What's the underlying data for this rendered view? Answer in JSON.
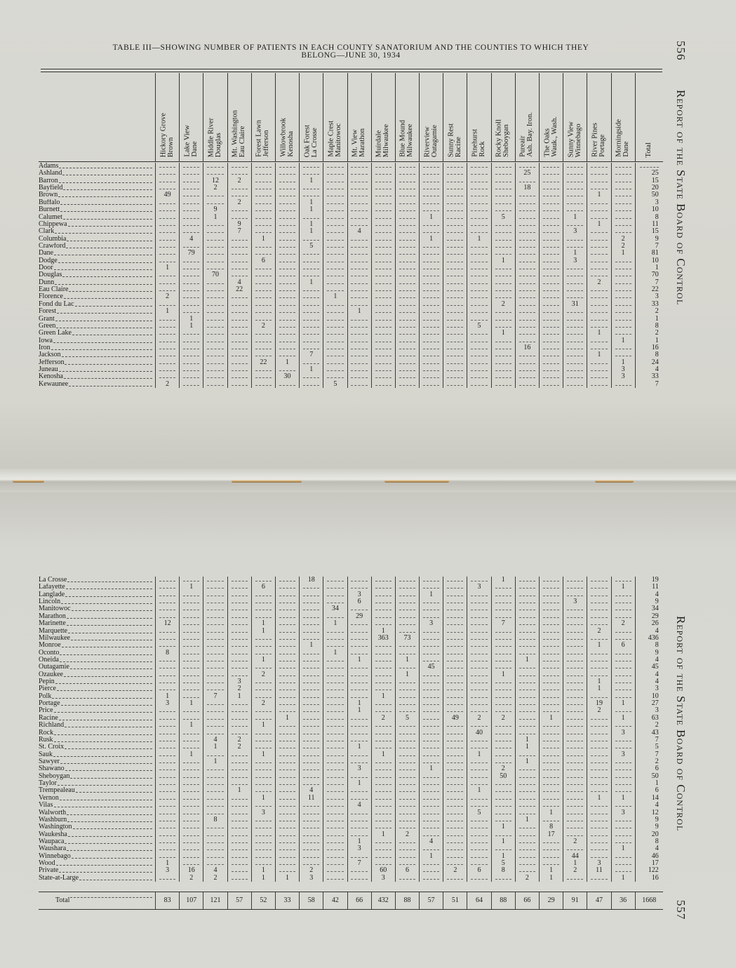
{
  "page_numbers": {
    "left": "556",
    "right": "557"
  },
  "running_head": "Report of the State Board of Control",
  "title": {
    "line1": "TABLE III—SHOWING NUMBER OF PATIENTS IN EACH COUNTY SANATORIUM AND THE COUNTIES TO WHICH THEY",
    "line2": "BELONG—JUNE 30, 1934"
  },
  "columns": [
    {
      "key": "hickory_grove",
      "name": "Hickory Grove",
      "county": "Brown"
    },
    {
      "key": "lake_view",
      "name": "Lake View",
      "county": "Dane"
    },
    {
      "key": "middle_river",
      "name": "Middle River",
      "county": "Douglas"
    },
    {
      "key": "mt_washington",
      "name": "Mt. Washington",
      "county": "Eau Claire"
    },
    {
      "key": "forest_lawn",
      "name": "Forest Lawn",
      "county": "Jefferson"
    },
    {
      "key": "willowbrook",
      "name": "Willowbrook",
      "county": "Kenosha"
    },
    {
      "key": "oak_forest",
      "name": "Oak Forest",
      "county": "La Crosse"
    },
    {
      "key": "maple_crest",
      "name": "Maple Crest",
      "county": "Manitowoc"
    },
    {
      "key": "mt_view",
      "name": "Mt. View",
      "county": "Marathon"
    },
    {
      "key": "muirdale",
      "name": "Muirdale",
      "county": "Milwaukee"
    },
    {
      "key": "blue_mound",
      "name": "Blue Mound",
      "county": "Milwaukee"
    },
    {
      "key": "riverview",
      "name": "Riverview",
      "county": "Outagamie"
    },
    {
      "key": "sunny_rest",
      "name": "Sunny Rest",
      "county": "Racine"
    },
    {
      "key": "pinehurst",
      "name": "Pinehurst",
      "county": "Rock"
    },
    {
      "key": "rocky_knoll",
      "name": "Rocky Knoll",
      "county": "Sheboygan"
    },
    {
      "key": "pureair",
      "name": "Pureair",
      "county": "Ash. Bay. Iron."
    },
    {
      "key": "the_oaks",
      "name": "The Oaks",
      "county": "Wauk., Wash."
    },
    {
      "key": "sunny_view",
      "name": "Sunny View",
      "county": "Winnebago"
    },
    {
      "key": "river_pines",
      "name": "River Pines",
      "county": "Portage"
    },
    {
      "key": "morningside",
      "name": "Morningside",
      "county": "Dane"
    }
  ],
  "total_header": "Total",
  "top_rows": [
    {
      "county": "Adams",
      "cells": {},
      "total": ""
    },
    {
      "county": "Ashland",
      "cells": {
        "pureair": "25"
      },
      "total": "25"
    },
    {
      "county": "Barron",
      "cells": {
        "middle_river": "12",
        "mt_washington": "2",
        "oak_forest": "1"
      },
      "total": "15"
    },
    {
      "county": "Bayfield",
      "cells": {
        "middle_river": "2",
        "pureair": "18"
      },
      "total": "20"
    },
    {
      "county": "Brown",
      "cells": {
        "hickory_grove": "49",
        "river_pines": "1"
      },
      "total": "50"
    },
    {
      "county": "Buffalo",
      "cells": {
        "mt_washington": "2",
        "oak_forest": "1"
      },
      "total": "3"
    },
    {
      "county": "Burnett",
      "cells": {
        "middle_river": "9",
        "oak_forest": "1"
      },
      "total": "10"
    },
    {
      "county": "Calumet",
      "cells": {
        "middle_river": "1",
        "riverview": "1",
        "rocky_knoll": "5",
        "sunny_view": "1"
      },
      "total": "8"
    },
    {
      "county": "Chippewa",
      "cells": {
        "mt_washington": "9",
        "oak_forest": "1",
        "river_pines": "1"
      },
      "total": "11"
    },
    {
      "county": "Clark",
      "cells": {
        "mt_washington": "7",
        "oak_forest": "1",
        "mt_view": "4",
        "sunny_view": "3"
      },
      "total": "15"
    },
    {
      "county": "Columbia",
      "cells": {
        "lake_view": "4",
        "forest_lawn": "1",
        "riverview": "1",
        "pinehurst": "1",
        "morningside": "2"
      },
      "total": "9"
    },
    {
      "county": "Crawford",
      "cells": {
        "oak_forest": "5",
        "morningside": "2"
      },
      "total": "7"
    },
    {
      "county": "Dane",
      "cells": {
        "lake_view": "79",
        "sunny_view": "1",
        "morningside": "1"
      },
      "total": "81"
    },
    {
      "county": "Dodge",
      "cells": {
        "forest_lawn": "6",
        "rocky_knoll": "1",
        "sunny_view": "3"
      },
      "total": "10"
    },
    {
      "county": "Door",
      "cells": {
        "hickory_grove": "1"
      },
      "total": "1"
    },
    {
      "county": "Douglas",
      "cells": {
        "middle_river": "70"
      },
      "total": "70"
    },
    {
      "county": "Dunn",
      "cells": {
        "mt_washington": "4",
        "oak_forest": "1",
        "river_pines": "2"
      },
      "total": "7"
    },
    {
      "county": "Eau Claire",
      "cells": {
        "mt_washington": "22"
      },
      "total": "22"
    },
    {
      "county": "Florence",
      "cells": {
        "hickory_grove": "2",
        "maple_crest": "1"
      },
      "total": "3"
    },
    {
      "county": "Fond du Lac",
      "cells": {
        "rocky_knoll": "2",
        "sunny_view": "31"
      },
      "total": "33"
    },
    {
      "county": "Forest",
      "cells": {
        "hickory_grove": "1",
        "mt_view": "1"
      },
      "total": "2"
    },
    {
      "county": "Grant",
      "cells": {
        "lake_view": "1"
      },
      "total": "1"
    },
    {
      "county": "Green",
      "cells": {
        "lake_view": "1",
        "forest_lawn": "2",
        "pinehurst": "5"
      },
      "total": "8"
    },
    {
      "county": "Green Lake",
      "cells": {
        "rocky_knoll": "1",
        "river_pines": "1"
      },
      "total": "2"
    },
    {
      "county": "Iowa",
      "cells": {
        "morningside": "1"
      },
      "total": "1"
    },
    {
      "county": "Iron",
      "cells": {
        "pureair": "16"
      },
      "total": "16"
    },
    {
      "county": "Jackson",
      "cells": {
        "oak_forest": "7",
        "river_pines": "1"
      },
      "total": "8"
    },
    {
      "county": "Jefferson",
      "cells": {
        "forest_lawn": "22",
        "willowbrook": "1",
        "morningside": "1"
      },
      "total": "24"
    },
    {
      "county": "Juneau",
      "cells": {
        "oak_forest": "1",
        "morningside": "3"
      },
      "total": "4"
    },
    {
      "county": "Kenosha",
      "cells": {
        "willowbrook": "30",
        "morningside": "3"
      },
      "total": "33"
    },
    {
      "county": "Kewaunee",
      "cells": {
        "hickory_grove": "2",
        "maple_crest": "5"
      },
      "total": "7"
    }
  ],
  "bottom_rows": [
    {
      "county": "La Crosse",
      "cells": {
        "oak_forest": "18",
        "rocky_knoll": "1"
      },
      "total": "19"
    },
    {
      "county": "Lafayette",
      "cells": {
        "lake_view": "1",
        "forest_lawn": "6",
        "pinehurst": "3",
        "morningside": "1"
      },
      "total": "11"
    },
    {
      "county": "Langlade",
      "cells": {
        "mt_view": "3",
        "riverview": "1"
      },
      "total": "4"
    },
    {
      "county": "Lincoln",
      "cells": {
        "mt_view": "6",
        "sunny_view": "3"
      },
      "total": "9"
    },
    {
      "county": "Manitowoc",
      "cells": {
        "maple_crest": "34"
      },
      "total": "34"
    },
    {
      "county": "Marathon",
      "cells": {
        "mt_view": "29"
      },
      "total": "29"
    },
    {
      "county": "Marinette",
      "cells": {
        "hickory_grove": "12",
        "forest_lawn": "1",
        "maple_crest": "1",
        "riverview": "3",
        "rocky_knoll": "7",
        "morningside": "2"
      },
      "total": "26"
    },
    {
      "county": "Marquette",
      "cells": {
        "forest_lawn": "1",
        "muirdale": "1",
        "river_pines": "2"
      },
      "total": "4"
    },
    {
      "county": "Milwaukee",
      "cells": {
        "muirdale": "363",
        "blue_mound": "73"
      },
      "total": "436"
    },
    {
      "county": "Monroe",
      "cells": {
        "oak_forest": "1",
        "river_pines": "1",
        "morningside": "6"
      },
      "total": "8"
    },
    {
      "county": "Oconto",
      "cells": {
        "hickory_grove": "8",
        "maple_crest": "1"
      },
      "total": "9"
    },
    {
      "county": "Oneida",
      "cells": {
        "forest_lawn": "1",
        "mt_view": "1",
        "blue_mound": "1",
        "pureair": "1"
      },
      "total": "4"
    },
    {
      "county": "Outagamie",
      "cells": {
        "riverview": "45"
      },
      "total": "45"
    },
    {
      "county": "Ozaukee",
      "cells": {
        "forest_lawn": "2",
        "blue_mound": "1",
        "rocky_knoll": "1"
      },
      "total": "4"
    },
    {
      "county": "Pepin",
      "cells": {
        "mt_washington": "3",
        "river_pines": "1"
      },
      "total": "4"
    },
    {
      "county": "Pierce",
      "cells": {
        "mt_washington": "2",
        "river_pines": "1"
      },
      "total": "3"
    },
    {
      "county": "Polk",
      "cells": {
        "hickory_grove": "1",
        "middle_river": "7",
        "mt_washington": "1",
        "muirdale": "1"
      },
      "total": "10"
    },
    {
      "county": "Portage",
      "cells": {
        "hickory_grove": "3",
        "lake_view": "1",
        "forest_lawn": "2",
        "mt_view": "1",
        "river_pines": "19",
        "morningside": "1"
      },
      "total": "27"
    },
    {
      "county": "Price",
      "cells": {
        "mt_view": "1",
        "river_pines": "2"
      },
      "total": "3"
    },
    {
      "county": "Racine",
      "cells": {
        "willowbrook": "1",
        "muirdale": "2",
        "blue_mound": "5",
        "sunny_rest": "49",
        "pinehurst": "2",
        "rocky_knoll": "2",
        "the_oaks": "1",
        "morningside": "1"
      },
      "total": "63"
    },
    {
      "county": "Richland",
      "cells": {
        "lake_view": "1",
        "forest_lawn": "1"
      },
      "total": "2"
    },
    {
      "county": "Rock",
      "cells": {
        "pinehurst": "40",
        "morningside": "3"
      },
      "total": "43"
    },
    {
      "county": "Rusk",
      "cells": {
        "middle_river": "4",
        "mt_washington": "2",
        "pureair": "1"
      },
      "total": "7"
    },
    {
      "county": "St. Croix",
      "cells": {
        "middle_river": "1",
        "mt_washington": "2",
        "mt_view": "1",
        "pureair": "1"
      },
      "total": "5"
    },
    {
      "county": "Sauk",
      "cells": {
        "lake_view": "1",
        "forest_lawn": "1",
        "muirdale": "1",
        "pinehurst": "1",
        "morningside": "3"
      },
      "total": "7"
    },
    {
      "county": "Sawyer",
      "cells": {
        "middle_river": "1",
        "pureair": "1"
      },
      "total": "2"
    },
    {
      "county": "Shawano",
      "cells": {
        "mt_view": "3",
        "riverview": "1",
        "rocky_knoll": "2"
      },
      "total": "6"
    },
    {
      "county": "Sheboygan",
      "cells": {
        "rocky_knoll": "50"
      },
      "total": "50"
    },
    {
      "county": "Taylor",
      "cells": {
        "mt_view": "1"
      },
      "total": "1"
    },
    {
      "county": "Trempealeau",
      "cells": {
        "mt_washington": "1",
        "oak_forest": "4",
        "pinehurst": "1"
      },
      "total": "6"
    },
    {
      "county": "Vernon",
      "cells": {
        "forest_lawn": "1",
        "oak_forest": "11",
        "river_pines": "1",
        "morningside": "1"
      },
      "total": "14"
    },
    {
      "county": "Vilas",
      "cells": {
        "mt_view": "4"
      },
      "total": "4"
    },
    {
      "county": "Walworth",
      "cells": {
        "forest_lawn": "3",
        "pinehurst": "5",
        "the_oaks": "1",
        "morningside": "3"
      },
      "total": "12"
    },
    {
      "county": "Washburn",
      "cells": {
        "middle_river": "8",
        "pureair": "1"
      },
      "total": "9"
    },
    {
      "county": "Washington",
      "cells": {
        "rocky_knoll": "1",
        "the_oaks": "8"
      },
      "total": "9"
    },
    {
      "county": "Waukesha",
      "cells": {
        "muirdale": "1",
        "blue_mound": "2",
        "the_oaks": "17"
      },
      "total": "20"
    },
    {
      "county": "Waupaca",
      "cells": {
        "mt_view": "1",
        "riverview": "4",
        "rocky_knoll": "1",
        "sunny_view": "2"
      },
      "total": "8"
    },
    {
      "county": "Waushara",
      "cells": {
        "mt_view": "3",
        "morningside": "1"
      },
      "total": "4"
    },
    {
      "county": "Winnebago",
      "cells": {
        "riverview": "1",
        "rocky_knoll": "1",
        "sunny_view": "44"
      },
      "total": "46"
    },
    {
      "county": "Wood",
      "cells": {
        "hickory_grove": "1",
        "mt_view": "7",
        "rocky_knoll": "5",
        "sunny_view": "1",
        "river_pines": "3"
      },
      "total": "17"
    },
    {
      "county": "Private",
      "cells": {
        "hickory_grove": "3",
        "lake_view": "16",
        "middle_river": "4",
        "forest_lawn": "1",
        "oak_forest": "2",
        "muirdale": "60",
        "blue_mound": "6",
        "sunny_rest": "2",
        "pinehurst": "6",
        "rocky_knoll": "8",
        "the_oaks": "1",
        "sunny_view": "2",
        "river_pines": "11"
      },
      "total": "122"
    },
    {
      "county": "State-at-Large",
      "cells": {
        "lake_view": "2",
        "middle_river": "2",
        "forest_lawn": "1",
        "willowbrook": "1",
        "oak_forest": "3",
        "muirdale": "3",
        "pureair": "2",
        "the_oaks": "1",
        "morningside": "1"
      },
      "total": "16"
    }
  ],
  "totals_row": {
    "label": "Total",
    "cells": {
      "hickory_grove": "83",
      "lake_view": "107",
      "middle_river": "121",
      "mt_washington": "57",
      "forest_lawn": "52",
      "willowbrook": "33",
      "oak_forest": "58",
      "maple_crest": "42",
      "mt_view": "66",
      "muirdale": "432",
      "blue_mound": "88",
      "riverview": "57",
      "sunny_rest": "51",
      "pinehurst": "64",
      "rocky_knoll": "88",
      "pureair": "66",
      "the_oaks": "29",
      "sunny_view": "91",
      "river_pines": "47",
      "morningside": "36"
    },
    "total": "1668"
  }
}
